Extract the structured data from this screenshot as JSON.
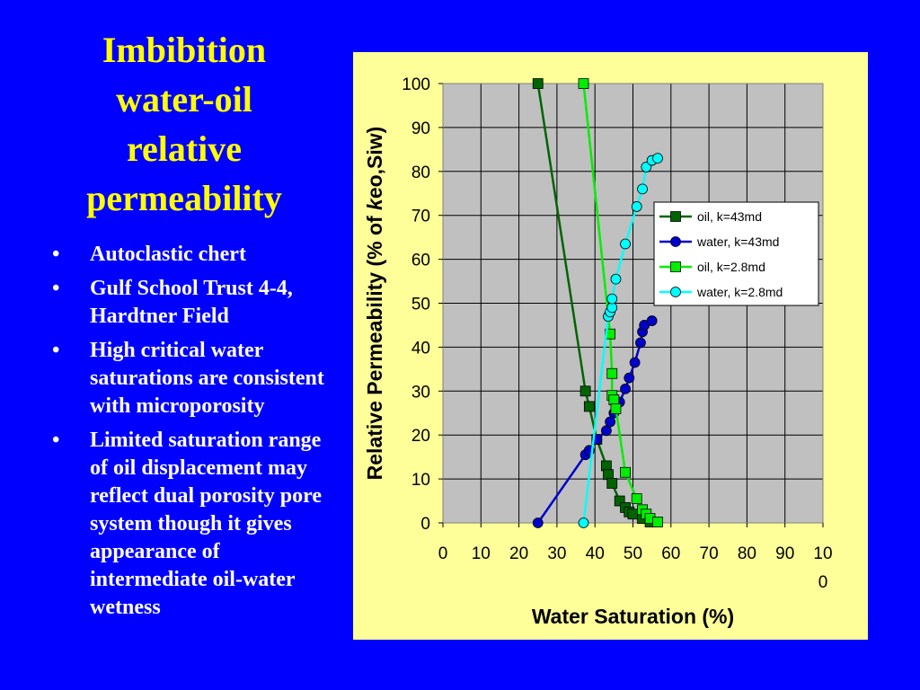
{
  "slide": {
    "title_lines": [
      "Imbibition",
      "water-oil",
      "relative",
      "permeability"
    ],
    "bullets": [
      "Autoclastic chert",
      "Gulf School Trust 4-4, Hardtner Field",
      "High critical water saturations are consistent with microporosity",
      "Limited saturation range of oil displacement may reflect dual porosity pore system though it gives appearance of intermediate oil-water wetness"
    ]
  },
  "chart_data": {
    "type": "scatter",
    "title": "",
    "xlabel": "Water Saturation (%)",
    "ylabel_prefix": "Relative Permeability (% of ",
    "ylabel_italic": "k",
    "ylabel_suffix": "eo,Siw)",
    "xlim": [
      0,
      100
    ],
    "ylim": [
      0,
      100
    ],
    "x_ticks": [
      "0",
      "10",
      "20",
      "30",
      "40",
      "50",
      "60",
      "70",
      "80",
      "90",
      "100"
    ],
    "y_ticks": [
      "0",
      "10",
      "20",
      "30",
      "40",
      "50",
      "60",
      "70",
      "80",
      "90",
      "100"
    ],
    "grid": true,
    "plot_background": "#c0c0c0",
    "legend_position": "upper-right",
    "series": [
      {
        "name": "oil, k=43md",
        "marker": "square",
        "color": "#006400",
        "points": [
          [
            25,
            100
          ],
          [
            37.5,
            30
          ],
          [
            38.5,
            26.5
          ],
          [
            40.5,
            19
          ],
          [
            43,
            13
          ],
          [
            43.5,
            11
          ],
          [
            44.5,
            9
          ],
          [
            46.5,
            5
          ],
          [
            48,
            3.5
          ],
          [
            49,
            2.5
          ],
          [
            50,
            2
          ],
          [
            52.5,
            1
          ],
          [
            54.5,
            0.2
          ]
        ]
      },
      {
        "name": "water, k=43md",
        "marker": "circle",
        "color": "#0000cc",
        "points": [
          [
            25,
            0
          ],
          [
            37.5,
            15.5
          ],
          [
            38.5,
            16.5
          ],
          [
            40.5,
            19
          ],
          [
            43,
            21
          ],
          [
            44,
            23
          ],
          [
            45,
            25
          ],
          [
            46.5,
            27.5
          ],
          [
            48,
            30.5
          ],
          [
            49,
            33
          ],
          [
            50.5,
            36.5
          ],
          [
            52,
            41
          ],
          [
            52.5,
            43.5
          ],
          [
            53,
            45
          ],
          [
            55,
            46
          ]
        ]
      },
      {
        "name": "oil, k=2.8md",
        "marker": "square",
        "color": "#00ee00",
        "points": [
          [
            37,
            100
          ],
          [
            44,
            43
          ],
          [
            44.5,
            34
          ],
          [
            44.5,
            29
          ],
          [
            45,
            28
          ],
          [
            45.5,
            26
          ],
          [
            48,
            11.5
          ],
          [
            51,
            5.5
          ],
          [
            52.5,
            3
          ],
          [
            53.5,
            2
          ],
          [
            54.5,
            1
          ],
          [
            56.5,
            0.2
          ]
        ]
      },
      {
        "name": "water, k=2.8md",
        "marker": "circle",
        "color": "#00ffff",
        "points": [
          [
            37,
            0
          ],
          [
            43.5,
            47
          ],
          [
            44,
            48
          ],
          [
            44.5,
            49
          ],
          [
            44.5,
            51
          ],
          [
            45.5,
            55.5
          ],
          [
            48,
            63.5
          ],
          [
            51,
            72
          ],
          [
            52.5,
            76
          ],
          [
            53.5,
            81
          ],
          [
            55,
            82.5
          ],
          [
            56.5,
            83
          ]
        ]
      }
    ]
  }
}
